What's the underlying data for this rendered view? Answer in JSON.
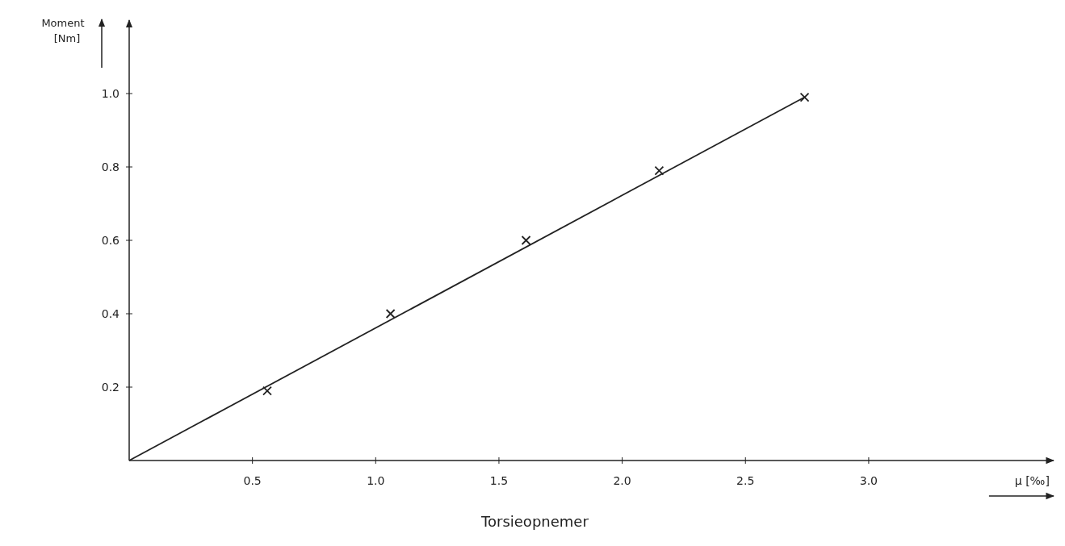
{
  "chart_data": {
    "type": "scatter",
    "title": "Torsieopnemer",
    "xlabel": "µ [‰]",
    "ylabel": "Moment [Nm]",
    "xlim": [
      0,
      3.75
    ],
    "ylim": [
      0,
      1.2
    ],
    "xticks": [
      0.5,
      {
        "value": 1,
        "label": "1.0"
      },
      1.5,
      {
        "value": 2,
        "label": "2.0"
      },
      2.5,
      {
        "value": 3,
        "label": "3.0"
      }
    ],
    "yticks": [
      0.2,
      0.4,
      0.6,
      0.8,
      {
        "value": 1,
        "label": "1.0"
      }
    ],
    "grid": false,
    "series": [
      {
        "color": "#222222",
        "marker": "cross",
        "x": [
          0.56,
          1.06,
          1.61,
          2.15,
          2.74
        ],
        "values": [
          0.19,
          0.4,
          0.6,
          0.79,
          0.99
        ]
      },
      {
        "type": "line",
        "color": "#222222",
        "x": [
          0,
          2.74
        ],
        "values": [
          0,
          0.99
        ]
      }
    ]
  }
}
